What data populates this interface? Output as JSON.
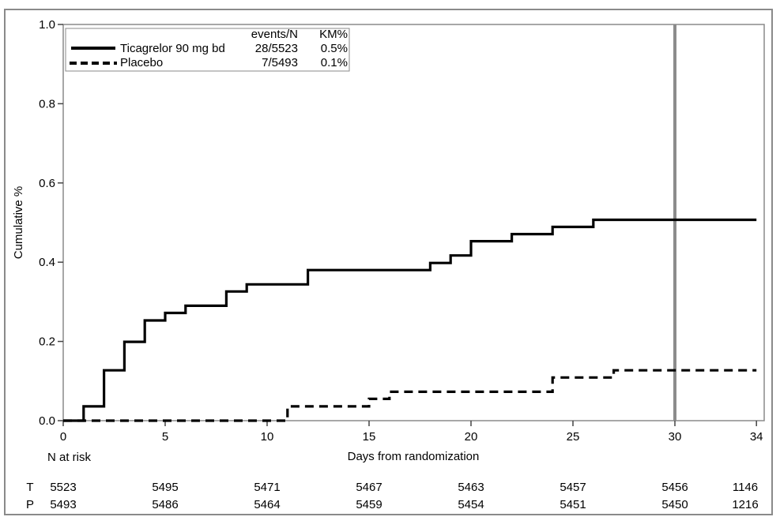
{
  "figure": {
    "border_color": "#8a8a8a",
    "background": "#ffffff"
  },
  "chart_data": {
    "type": "line",
    "subtype": "kaplan-meier-step",
    "xlabel": "Days from randomization",
    "ylabel": "Cumulative %",
    "xlim": [
      0,
      34
    ],
    "ylim": [
      0.0,
      1.0
    ],
    "xticks": [
      0,
      5,
      10,
      15,
      20,
      25,
      30,
      34
    ],
    "ytick_labels": [
      "0.0",
      "0.2",
      "0.4",
      "0.6",
      "0.8",
      "1.0"
    ],
    "ytick_values": [
      0.0,
      0.2,
      0.4,
      0.6,
      0.8,
      1.0
    ],
    "grid": false,
    "reference_line_x": 30,
    "colors": {
      "curve": "#000000",
      "reference_line": "#8c8c8c",
      "frame": "#8a8a8a",
      "tick": "#444444"
    },
    "legend": {
      "headers": [
        "events/N",
        "KM%"
      ],
      "position": "top-left"
    },
    "series": [
      {
        "name": "Ticagrelor 90 mg bd",
        "style": "solid",
        "events_n": "28/5523",
        "km_pct": "0.5%",
        "points": [
          [
            0,
            0.0
          ],
          [
            1,
            0.036
          ],
          [
            2,
            0.127
          ],
          [
            3,
            0.199
          ],
          [
            4,
            0.253
          ],
          [
            5,
            0.272
          ],
          [
            6,
            0.29
          ],
          [
            8,
            0.326
          ],
          [
            9,
            0.344
          ],
          [
            12,
            0.38
          ],
          [
            18,
            0.398
          ],
          [
            19,
            0.417
          ],
          [
            20,
            0.453
          ],
          [
            22,
            0.471
          ],
          [
            24,
            0.489
          ],
          [
            26,
            0.507
          ]
        ],
        "end_x": 34
      },
      {
        "name": "Placebo",
        "style": "dashed",
        "events_n": "7/5493",
        "km_pct": "0.1%",
        "points": [
          [
            0,
            0.0
          ],
          [
            11,
            0.036
          ],
          [
            15,
            0.055
          ],
          [
            16,
            0.073
          ],
          [
            24,
            0.109
          ],
          [
            27,
            0.127
          ]
        ],
        "end_x": 34
      }
    ],
    "risk_table": {
      "label": "N at risk",
      "days": [
        0,
        5,
        10,
        15,
        20,
        25,
        30,
        34
      ],
      "rows": [
        {
          "label": "T",
          "values": [
            "5523",
            "5495",
            "5471",
            "5467",
            "5463",
            "5457",
            "5456",
            "1146"
          ]
        },
        {
          "label": "P",
          "values": [
            "5493",
            "5486",
            "5464",
            "5459",
            "5454",
            "5451",
            "5450",
            "1216"
          ]
        }
      ]
    }
  }
}
